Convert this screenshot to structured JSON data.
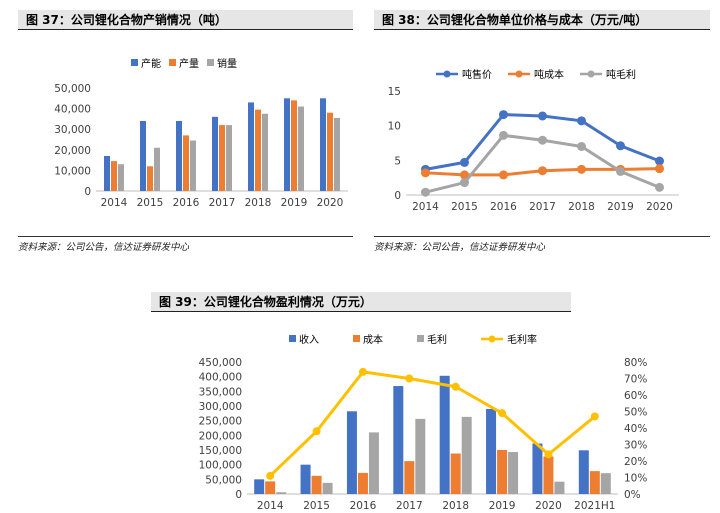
{
  "figures": [
    {
      "title": "图 37：公司锂化合物产销情况（吨）",
      "source": "资料来源：公司公告，信达证券研发中心"
    },
    {
      "title": "图 38：公司锂化合物单位价格与成本（万元/吨）",
      "source": "资料来源：公司公告，信达证券研发中心"
    },
    {
      "title": "图 39：公司锂化合物盈利情况（万元）",
      "source": ""
    }
  ],
  "chart_data": [
    {
      "type": "bar",
      "title": "图 37：公司锂化合物产销情况（吨）",
      "categories": [
        "2014",
        "2015",
        "2016",
        "2017",
        "2018",
        "2019",
        "2020"
      ],
      "ylim": [
        0,
        50000
      ],
      "yticks": [
        "0",
        "10,000",
        "20,000",
        "30,000",
        "40,000",
        "50,000"
      ],
      "legend_position": "top",
      "grid": false,
      "series": [
        {
          "name": "产能",
          "color": "#4472C4",
          "values": [
            17000,
            34000,
            34000,
            36000,
            43000,
            45000,
            45000
          ]
        },
        {
          "name": "产量",
          "color": "#ED7D31",
          "values": [
            14500,
            12000,
            27000,
            32000,
            39500,
            44000,
            38000
          ]
        },
        {
          "name": "销量",
          "color": "#A5A5A5",
          "values": [
            13000,
            21000,
            24500,
            32000,
            37500,
            41000,
            35500
          ]
        }
      ]
    },
    {
      "type": "line",
      "title": "图 38：公司锂化合物单位价格与成本（万元/吨）",
      "categories": [
        "2014",
        "2015",
        "2016",
        "2017",
        "2018",
        "2019",
        "2020"
      ],
      "ylim": [
        0,
        15
      ],
      "yticks": [
        "0",
        "5",
        "10",
        "15"
      ],
      "legend_position": "top",
      "grid": false,
      "series": [
        {
          "name": "吨售价",
          "color": "#4472C4",
          "values": [
            3.7,
            4.7,
            11.6,
            11.4,
            10.7,
            7.1,
            4.9
          ]
        },
        {
          "name": "吨成本",
          "color": "#ED7D31",
          "values": [
            3.2,
            2.9,
            2.9,
            3.5,
            3.7,
            3.7,
            3.8
          ]
        },
        {
          "name": "吨毛利",
          "color": "#A5A5A5",
          "values": [
            0.4,
            1.8,
            8.6,
            7.9,
            7.0,
            3.4,
            1.1
          ]
        }
      ]
    },
    {
      "type": "bar",
      "title": "图 39：公司锂化合物盈利情况（万元）",
      "categories": [
        "2014",
        "2015",
        "2016",
        "2017",
        "2018",
        "2019",
        "2020",
        "2021H1"
      ],
      "ylim": [
        0,
        450000
      ],
      "y2lim": [
        0,
        80
      ],
      "yticks": [
        "0",
        "50,000",
        "100,000",
        "150,000",
        "200,000",
        "250,000",
        "300,000",
        "350,000",
        "400,000",
        "450,000"
      ],
      "y2ticks": [
        "0%",
        "10%",
        "20%",
        "30%",
        "40%",
        "50%",
        "60%",
        "70%",
        "80%"
      ],
      "legend_position": "top",
      "grid": false,
      "series": [
        {
          "name": "收入",
          "color": "#4472C4",
          "values": [
            50000,
            100000,
            282000,
            368000,
            403000,
            290000,
            172000,
            149000
          ]
        },
        {
          "name": "成本",
          "color": "#ED7D31",
          "values": [
            43000,
            62000,
            72000,
            112000,
            138000,
            150000,
            128000,
            78000
          ]
        },
        {
          "name": "毛利",
          "color": "#A5A5A5",
          "values": [
            6000,
            38000,
            210000,
            256000,
            263000,
            143000,
            42000,
            71000
          ]
        },
        {
          "name": "毛利率",
          "color": "#FFC000",
          "type": "line",
          "axis": "right",
          "values": [
            11,
            38,
            74,
            70,
            65,
            49,
            24,
            47
          ]
        }
      ]
    }
  ]
}
